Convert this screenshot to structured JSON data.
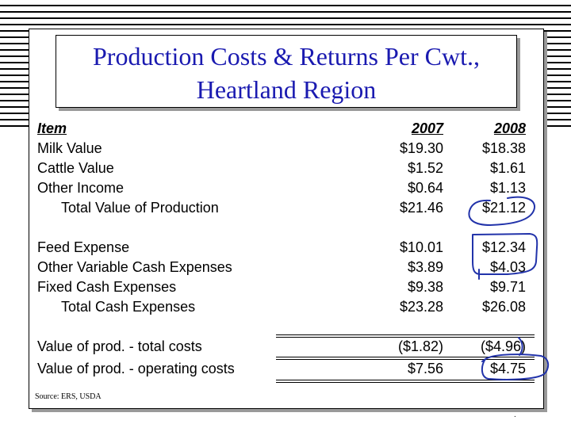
{
  "title": {
    "line1": "Production Costs & Returns Per Cwt.,",
    "line2": "Heartland Region"
  },
  "table": {
    "headers": {
      "item": "Item",
      "y2007": "2007",
      "y2008": "2008"
    },
    "rows": [
      {
        "label": "Milk Value",
        "v2007": "$19.30",
        "v2008": "$18.38"
      },
      {
        "label": "Cattle Value",
        "v2007": "$1.52",
        "v2008": "$1.61"
      },
      {
        "label": "Other Income",
        "v2007": "$0.64",
        "v2008": "$1.13"
      },
      {
        "label": "Total Value of Production",
        "v2007": "$21.46",
        "v2008": "$21.12"
      },
      {
        "label": "Feed Expense",
        "v2007": "$10.01",
        "v2008": "$12.34"
      },
      {
        "label": "Other Variable Cash Expenses",
        "v2007": "$3.89",
        "v2008": "$4.03"
      },
      {
        "label": "Fixed Cash Expenses",
        "v2007": "$9.38",
        "v2008": "$9.71"
      },
      {
        "label": "Total Cash Expenses",
        "v2007": "$23.28",
        "v2008": "$26.08"
      },
      {
        "label": "Value of prod. - total costs",
        "v2007": "($1.82)",
        "v2008": "($4.96)"
      },
      {
        "label": "Value of prod. - operating costs",
        "v2007": "$7.56",
        "v2008": "$4.75"
      }
    ]
  },
  "source": "Source: ERS, USDA",
  "footer_mark": ".",
  "annotation_color": "#2233aa"
}
